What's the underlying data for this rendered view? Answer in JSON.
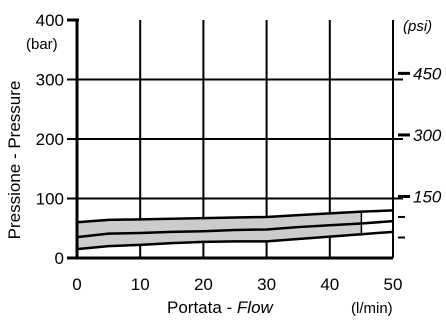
{
  "chart_data": {
    "type": "area",
    "xlabel": "Portata - ",
    "xlabel_en": "Flow",
    "x_unit": "(l/min)",
    "ylabel": "Pressione - Pressure",
    "y_unit_left": "(bar)",
    "y_unit_right": "(psi)",
    "xlim": [
      0,
      50
    ],
    "ylim": [
      0,
      400
    ],
    "x_ticks": [
      0,
      10,
      20,
      30,
      40,
      50
    ],
    "x_tick_labels": [
      "0",
      "10",
      "20",
      "30",
      "40",
      "50"
    ],
    "y_ticks": [
      0,
      100,
      200,
      300,
      400
    ],
    "y_tick_labels": [
      "0",
      "100",
      "200",
      "300",
      "400"
    ],
    "y2_ticks_bar": [
      10.34,
      20.68,
      31.03
    ],
    "y2_tick_labels": [
      "150",
      "300",
      "450"
    ],
    "grid": true,
    "band": {
      "x": [
        0,
        5,
        10,
        15,
        20,
        25,
        30,
        35,
        40,
        45
      ],
      "upper": [
        60,
        64,
        65,
        66,
        67,
        68,
        69,
        72,
        75,
        78
      ],
      "lower": [
        15,
        20,
        22,
        25,
        27,
        28,
        28,
        32,
        36,
        40
      ]
    },
    "series": [
      {
        "x": [
          0,
          5,
          10,
          15,
          20,
          25,
          30,
          35,
          40,
          45,
          50
        ],
        "values": [
          60,
          64,
          65,
          66,
          67,
          68,
          69,
          72,
          75,
          78,
          80
        ]
      },
      {
        "x": [
          0,
          5,
          10,
          15,
          20,
          25,
          30,
          35,
          40,
          45,
          50
        ],
        "values": [
          35,
          41,
          42,
          44,
          45,
          47,
          48,
          52,
          55,
          58,
          62
        ]
      },
      {
        "x": [
          0,
          5,
          10,
          15,
          20,
          25,
          30,
          35,
          40,
          45,
          50
        ],
        "values": [
          15,
          20,
          22,
          25,
          27,
          28,
          28,
          32,
          36,
          40,
          44
        ]
      }
    ]
  }
}
